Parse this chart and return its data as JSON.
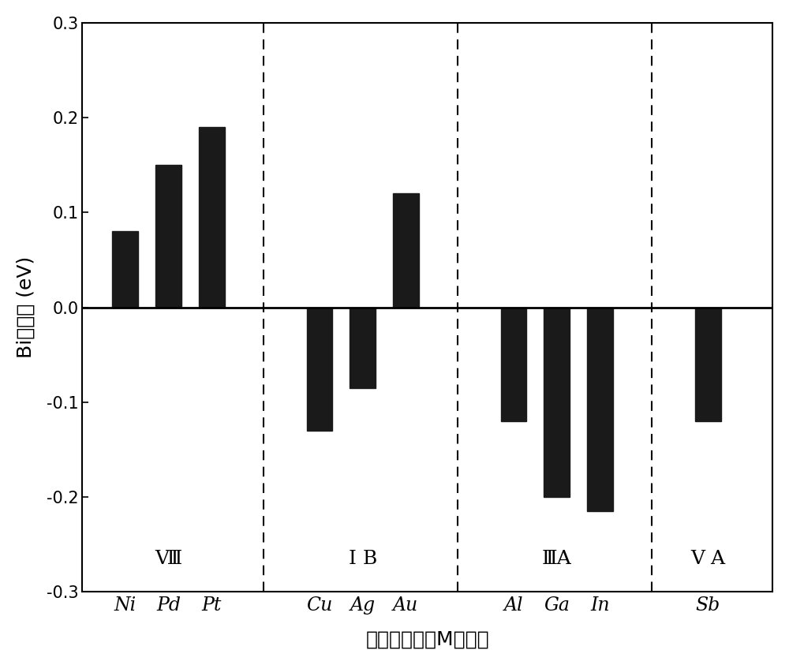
{
  "values": [
    0.08,
    0.15,
    0.19,
    -0.13,
    -0.085,
    0.12,
    -0.12,
    -0.2,
    -0.215,
    -0.12
  ],
  "bar_color": "#1a1a1a",
  "ylim": [
    -0.3,
    0.3
  ],
  "yticks": [
    -0.3,
    -0.2,
    -0.1,
    0.0,
    0.1,
    0.2,
    0.3
  ],
  "ylabel": "Bi偏析能 (eV)",
  "xlabel": "合金化元素（M）种类",
  "element_labels": [
    "Ni",
    "Pd",
    "Pt",
    "Cu",
    "Ag",
    "Au",
    "Al",
    "Ga",
    "In",
    "Sb"
  ],
  "group_labels": [
    "Ⅷ",
    "I B",
    "ⅢA",
    "V A"
  ],
  "bar_width": 0.6,
  "axis_fontsize": 18,
  "tick_fontsize": 15,
  "label_fontsize": 17,
  "group_fontsize": 18,
  "background_color": "#ffffff"
}
